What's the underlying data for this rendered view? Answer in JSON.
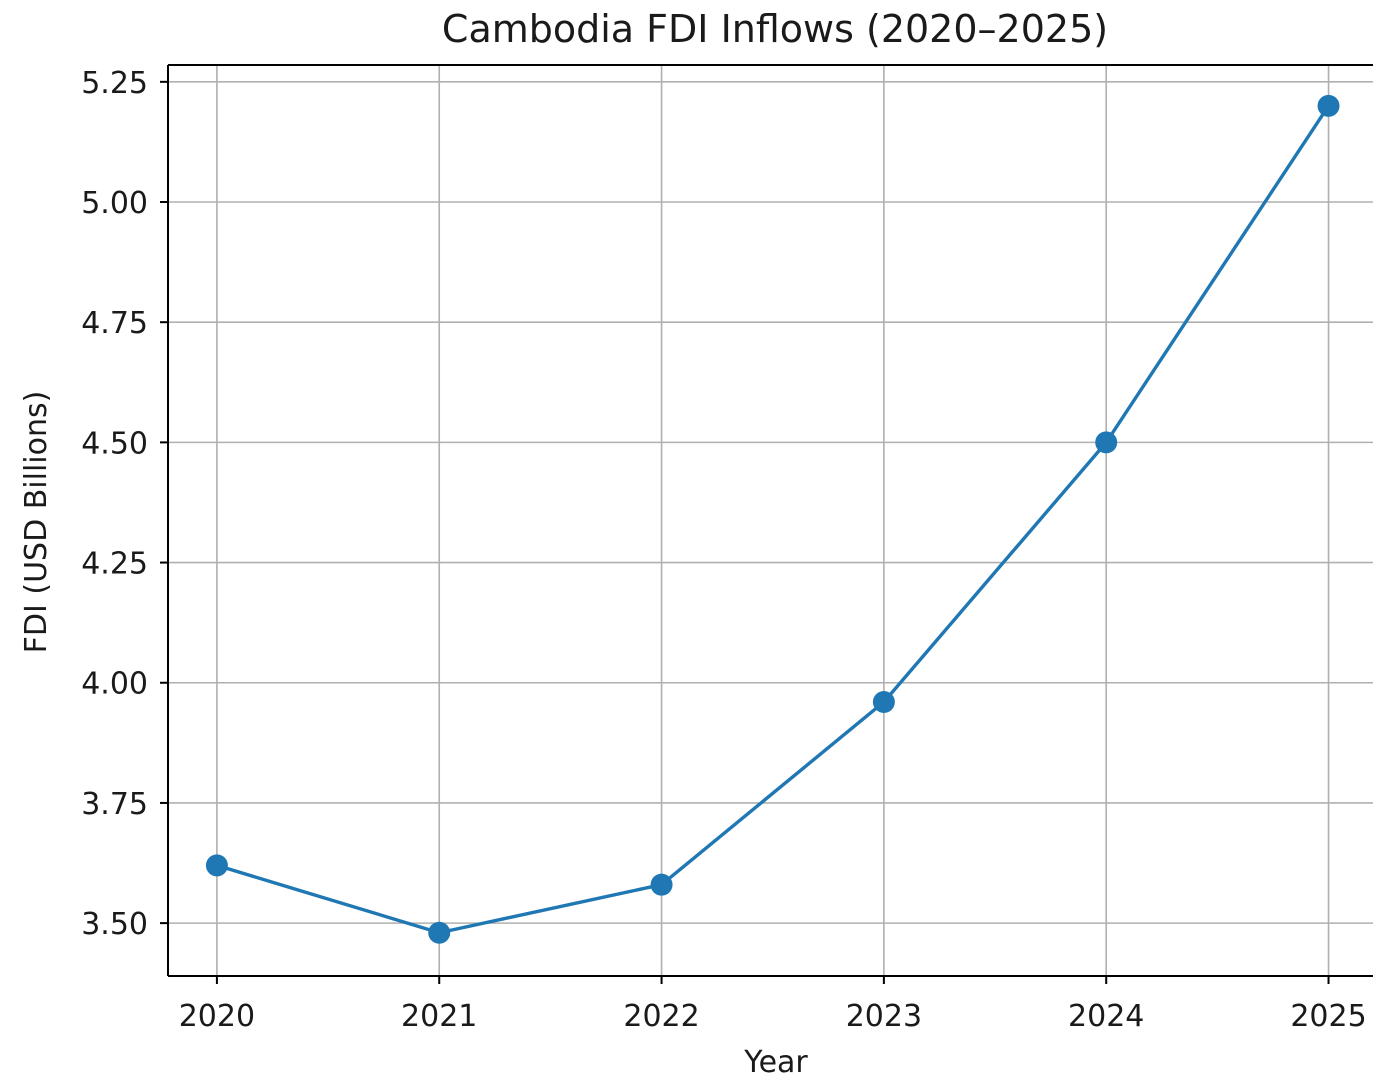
{
  "chart_data": {
    "type": "line",
    "title": "Cambodia FDI Inflows (2020–2025)",
    "xlabel": "Year",
    "ylabel": "FDI (USD Billions)",
    "x": [
      2020,
      2021,
      2022,
      2023,
      2024,
      2025
    ],
    "x_tick_labels": [
      "2020",
      "2021",
      "2022",
      "2023",
      "2024",
      "2025"
    ],
    "series": [
      {
        "values": [
          3.62,
          3.48,
          3.58,
          3.96,
          4.5,
          5.2
        ],
        "color": "#1f77b4",
        "marker": "circle"
      }
    ],
    "y_ticks": [
      3.5,
      3.75,
      4.0,
      4.25,
      4.5,
      4.75,
      5.0,
      5.25
    ],
    "y_tick_labels": [
      "3.50",
      "3.75",
      "4.00",
      "4.25",
      "4.50",
      "4.75",
      "5.00",
      "5.25"
    ],
    "xlim": [
      2019.78,
      2025.2
    ],
    "ylim": [
      3.39,
      5.285
    ],
    "grid": true,
    "legend": false
  }
}
